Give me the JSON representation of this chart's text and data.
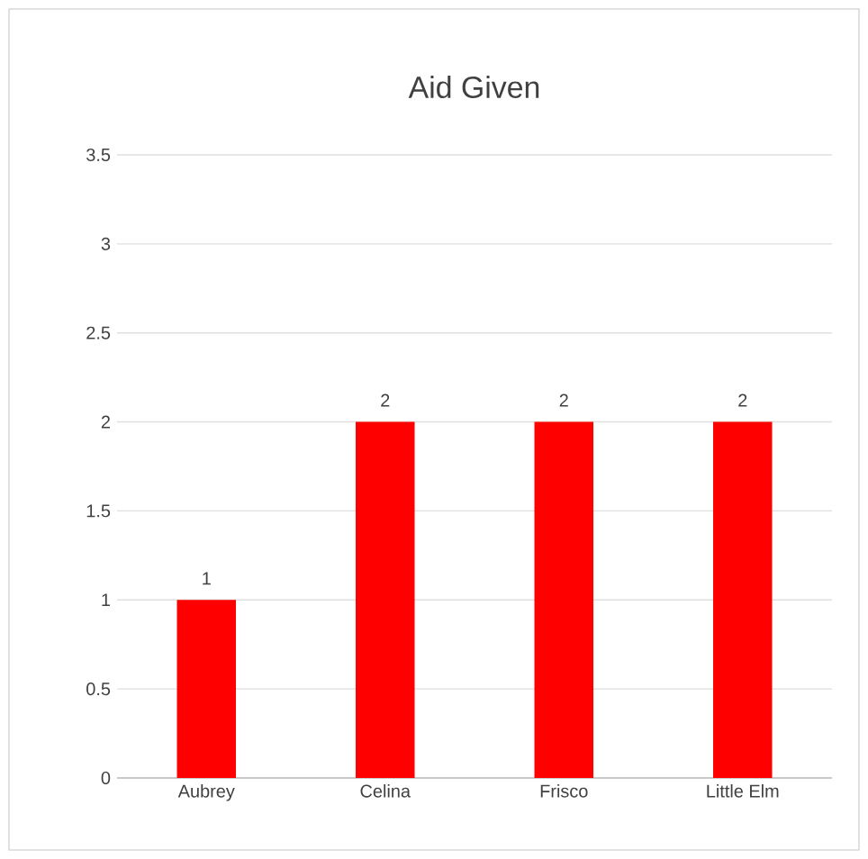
{
  "chart_data": {
    "type": "bar",
    "title": "Aid Given",
    "categories": [
      "Aubrey",
      "Celina",
      "Frisco",
      "Little Elm"
    ],
    "values": [
      1,
      2,
      2,
      2
    ],
    "color": "#ff0000",
    "ylim": [
      0,
      3.5
    ],
    "yticks": [
      0,
      0.5,
      1,
      1.5,
      2,
      2.5,
      3,
      3.5
    ],
    "grid": "y",
    "data_labels": true
  }
}
